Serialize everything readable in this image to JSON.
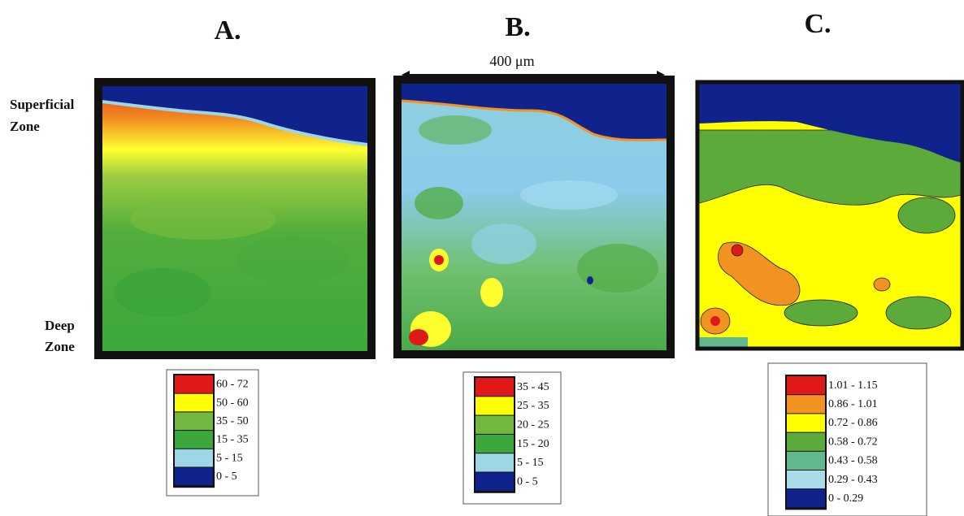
{
  "panels": [
    {
      "label": "A.",
      "legend": [
        {
          "range": "60 - 72",
          "color": "#e01818"
        },
        {
          "range": "50 - 60",
          "color": "#ffff00"
        },
        {
          "range": "35 - 50",
          "color": "#72b840"
        },
        {
          "range": "15 - 35",
          "color": "#3ca83c"
        },
        {
          "range": "5 - 15",
          "color": "#9fd6e6"
        },
        {
          "range": "0 - 5",
          "color": "#10238c"
        }
      ]
    },
    {
      "label": "B.",
      "scale_label": "400 μm",
      "legend": [
        {
          "range": "35 - 45",
          "color": "#e01818"
        },
        {
          "range": "25 - 35",
          "color": "#ffff00"
        },
        {
          "range": "20 - 25",
          "color": "#72b840"
        },
        {
          "range": "15 - 20",
          "color": "#3ca83c"
        },
        {
          "range": "5 - 15",
          "color": "#9fd6e6"
        },
        {
          "range": "0 - 5",
          "color": "#10238c"
        }
      ]
    },
    {
      "label": "C.",
      "legend": [
        {
          "range": "1.01 - 1.15",
          "color": "#e01818"
        },
        {
          "range": "0.86 - 1.01",
          "color": "#f29222"
        },
        {
          "range": "0.72 - 0.86",
          "color": "#ffff00"
        },
        {
          "range": "0.58 - 0.72",
          "color": "#5cab3a"
        },
        {
          "range": "0.43 - 0.58",
          "color": "#62b88e"
        },
        {
          "range": "0.29 - 0.43",
          "color": "#a8dce8"
        },
        {
          "range": "0 - 0.29",
          "color": "#10238c"
        }
      ]
    }
  ],
  "side_labels": {
    "top": [
      "Superficial",
      "Zone"
    ],
    "bottom": [
      "Deep",
      "Zone"
    ]
  }
}
